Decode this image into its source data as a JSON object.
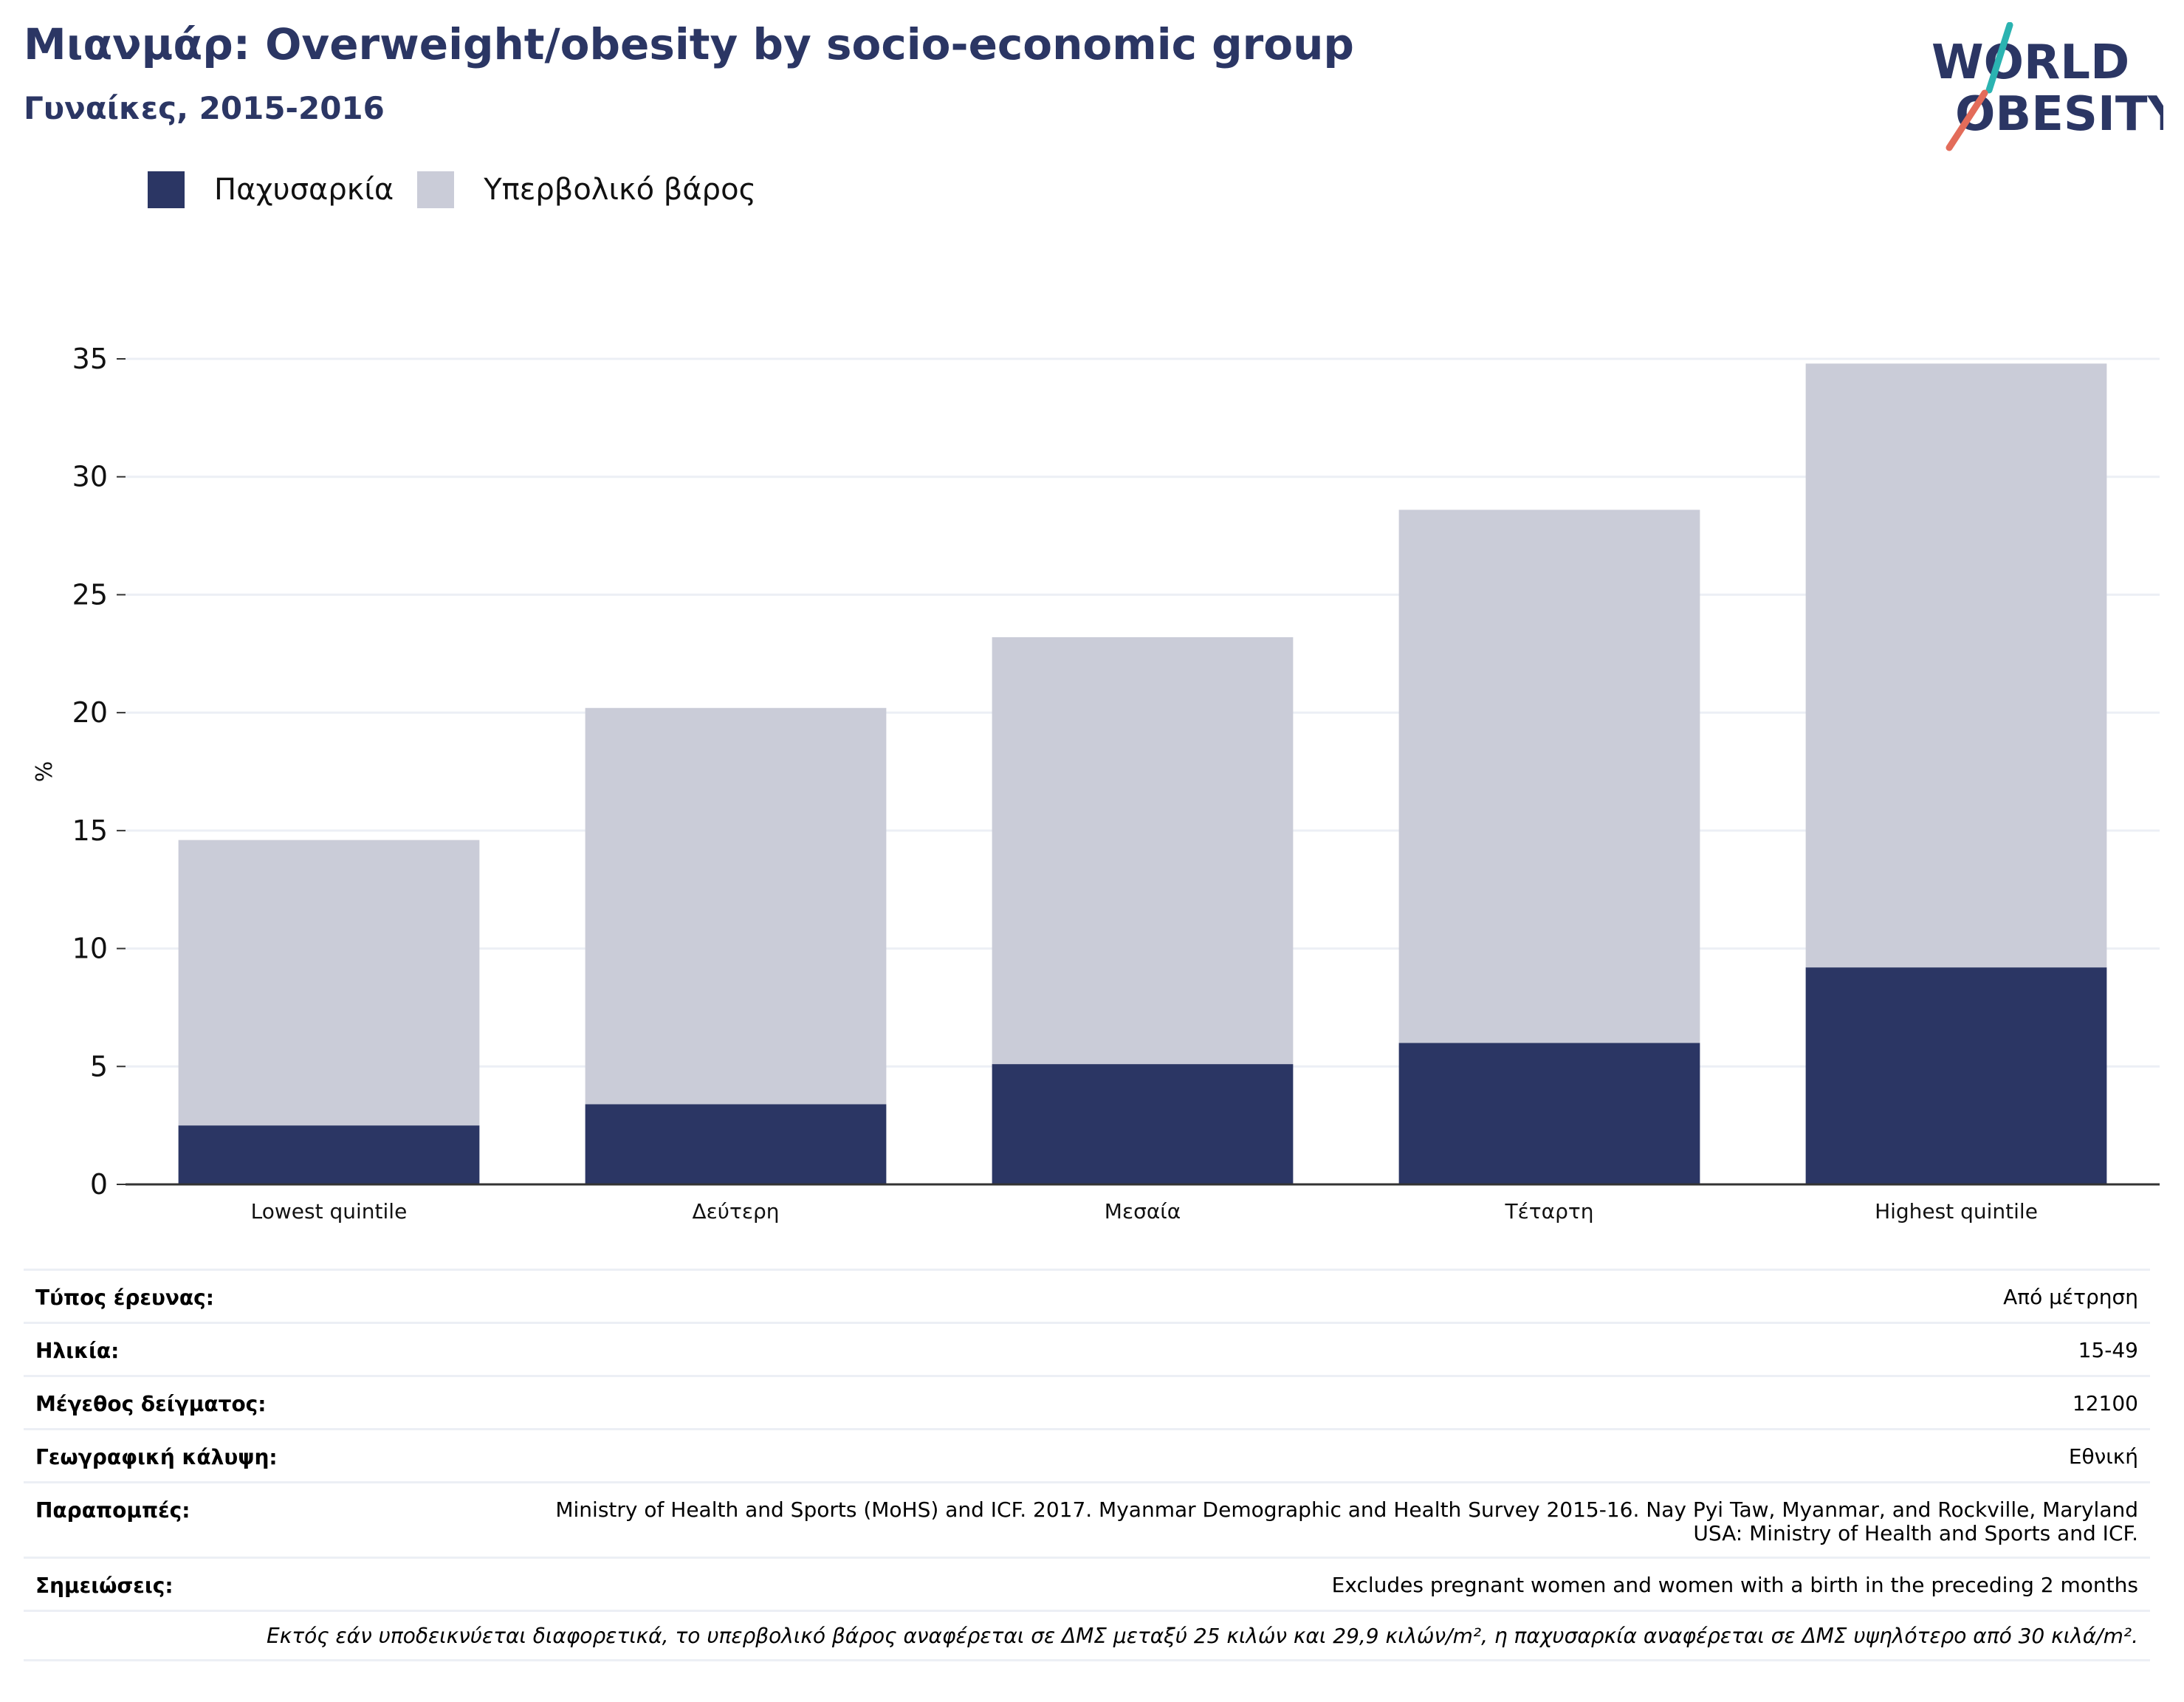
{
  "header": {
    "title": "Μιανμάρ: Overweight/obesity by socio-economic group",
    "subtitle": "Γυναίκες, 2015-2016"
  },
  "logo": {
    "line1": "WORLD",
    "line2": "OBESITY"
  },
  "colors": {
    "primary": "#2b3664",
    "secondary": "#caccd8",
    "logo_teal": "#2bb3b1",
    "logo_coral": "#e36c5a",
    "grid": "#eceff5"
  },
  "legend": [
    {
      "label": "Παχυσαρκία",
      "color": "#2b3664"
    },
    {
      "label": "Υπερβολικό βάρος",
      "color": "#caccd8"
    }
  ],
  "chart_data": {
    "type": "bar",
    "stacked": true,
    "categories": [
      "Lowest quintile",
      "Δεύτερη",
      "Μεσαία",
      "Τέταρτη",
      "Highest quintile"
    ],
    "series": [
      {
        "name": "Παχυσαρκία",
        "values": [
          2.5,
          3.4,
          5.1,
          6.0,
          9.2
        ],
        "color": "#2b3664"
      },
      {
        "name": "Υπερβολικό βάρος",
        "values": [
          12.1,
          16.8,
          18.1,
          22.6,
          25.6
        ],
        "color": "#caccd8"
      }
    ],
    "ylabel": "%",
    "ylim": [
      0,
      35
    ],
    "yticks": [
      0,
      5,
      10,
      15,
      20,
      25,
      30,
      35
    ],
    "grid": true,
    "legend_position": "top-left"
  },
  "metadata": [
    {
      "label": "Τύπος έρευνας:",
      "value": "Από μέτρηση"
    },
    {
      "label": "Ηλικία:",
      "value": "15-49"
    },
    {
      "label": "Μέγεθος δείγματος:",
      "value": "12100"
    },
    {
      "label": "Γεωγραφική κάλυψη:",
      "value": "Εθνική"
    },
    {
      "label": "Παραπομπές:",
      "value": "Ministry of Health and Sports (MoHS) and ICF. 2017. Myanmar Demographic and Health Survey 2015-16. Nay Pyi Taw, Myanmar, and Rockville, Maryland USA: Ministry of Health and Sports and ICF."
    },
    {
      "label": "Σημειώσεις:",
      "value": "Excludes pregnant women and women with a birth in the preceding 2 months"
    }
  ],
  "footnote": "Εκτός εάν υποδεικνύεται διαφορετικά, το υπερβολικό βάρος αναφέρεται σε ΔΜΣ μεταξύ 25 κιλών και 29,9 κιλών/m², η παχυσαρκία αναφέρεται σε ΔΜΣ υψηλότερο από 30 κιλά/m²."
}
